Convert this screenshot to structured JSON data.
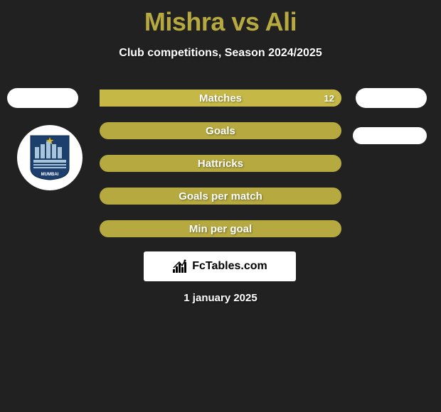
{
  "title": "Mishra vs Ali",
  "subtitle": "Club competitions, Season 2024/2025",
  "colors": {
    "background": "#212121",
    "accent": "#b5a93f",
    "accent_bright": "#c5b846",
    "text": "#ffffff",
    "white": "#ffffff"
  },
  "clubLeft": {
    "name": "Mumbai City FC",
    "crest": {
      "primary": "#1c3f6e",
      "secondary": "#a8c4d8",
      "star": "#e6b800"
    }
  },
  "bars": [
    {
      "label": "Matches",
      "left_value": "",
      "right_value": "12",
      "left_pct": 0,
      "right_pct": 100,
      "left_color": "#b5a93f",
      "right_color": "#c5b846",
      "bg_color": "#b5a93f"
    },
    {
      "label": "Goals",
      "left_value": "",
      "right_value": "",
      "left_pct": 0,
      "right_pct": 0,
      "left_color": "#b5a93f",
      "right_color": "#b5a93f",
      "bg_color": "#b5a93f"
    },
    {
      "label": "Hattricks",
      "left_value": "",
      "right_value": "",
      "left_pct": 0,
      "right_pct": 0,
      "left_color": "#b5a93f",
      "right_color": "#b5a93f",
      "bg_color": "#b5a93f"
    },
    {
      "label": "Goals per match",
      "left_value": "",
      "right_value": "",
      "left_pct": 0,
      "right_pct": 0,
      "left_color": "#b5a93f",
      "right_color": "#b5a93f",
      "bg_color": "#b5a93f"
    },
    {
      "label": "Min per goal",
      "left_value": "",
      "right_value": "",
      "left_pct": 0,
      "right_pct": 0,
      "left_color": "#b5a93f",
      "right_color": "#b5a93f",
      "bg_color": "#b5a93f"
    }
  ],
  "brand": "FcTables.com",
  "date": "1 january 2025"
}
